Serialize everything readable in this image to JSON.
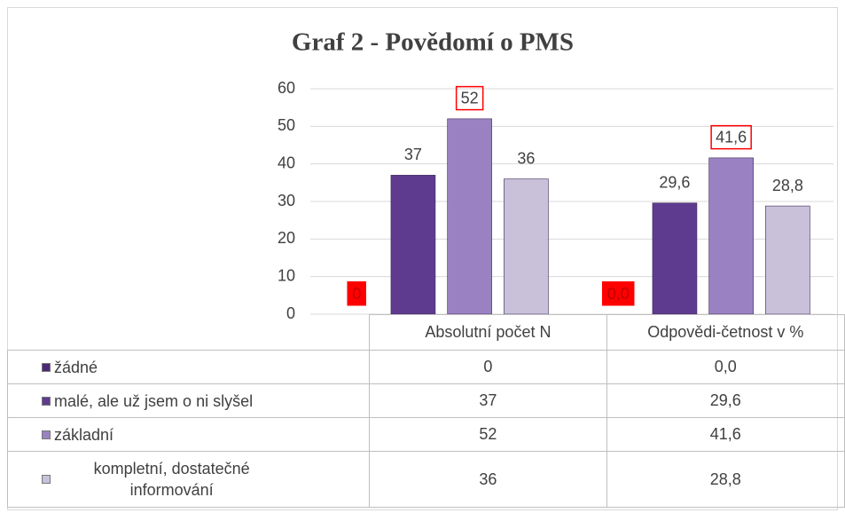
{
  "chart_data": {
    "type": "bar",
    "title": "Graf 2 - Povědomí o PMS",
    "categories": [
      "Absolutní počet N",
      "Odpovědi-četnost v %"
    ],
    "series": [
      {
        "name": "žádné",
        "color": "#4a2a78",
        "values": [
          0,
          0.0
        ],
        "value_labels": [
          "0",
          "0,0"
        ],
        "label_box": {
          "color": "#ff0000",
          "style": "fill"
        }
      },
      {
        "name": "malé, ale už jsem o ni slyšel",
        "color": "#5f3b8f",
        "values": [
          37,
          29.6
        ],
        "value_labels": [
          "37",
          "29,6"
        ]
      },
      {
        "name": "základní",
        "color": "#9a82c2",
        "values": [
          52,
          41.6
        ],
        "value_labels": [
          "52",
          "41,6"
        ],
        "label_box": {
          "color": "#ff0000",
          "style": "outline"
        }
      },
      {
        "name": "kompletní, dostatečné informování",
        "color": "#c9c1da",
        "values": [
          36,
          28.8
        ],
        "value_labels": [
          "36",
          "28,8"
        ]
      }
    ],
    "ylim": [
      0,
      60
    ],
    "yticks": [
      0,
      10,
      20,
      30,
      40,
      50,
      60
    ],
    "grid": true,
    "data_table": true
  }
}
